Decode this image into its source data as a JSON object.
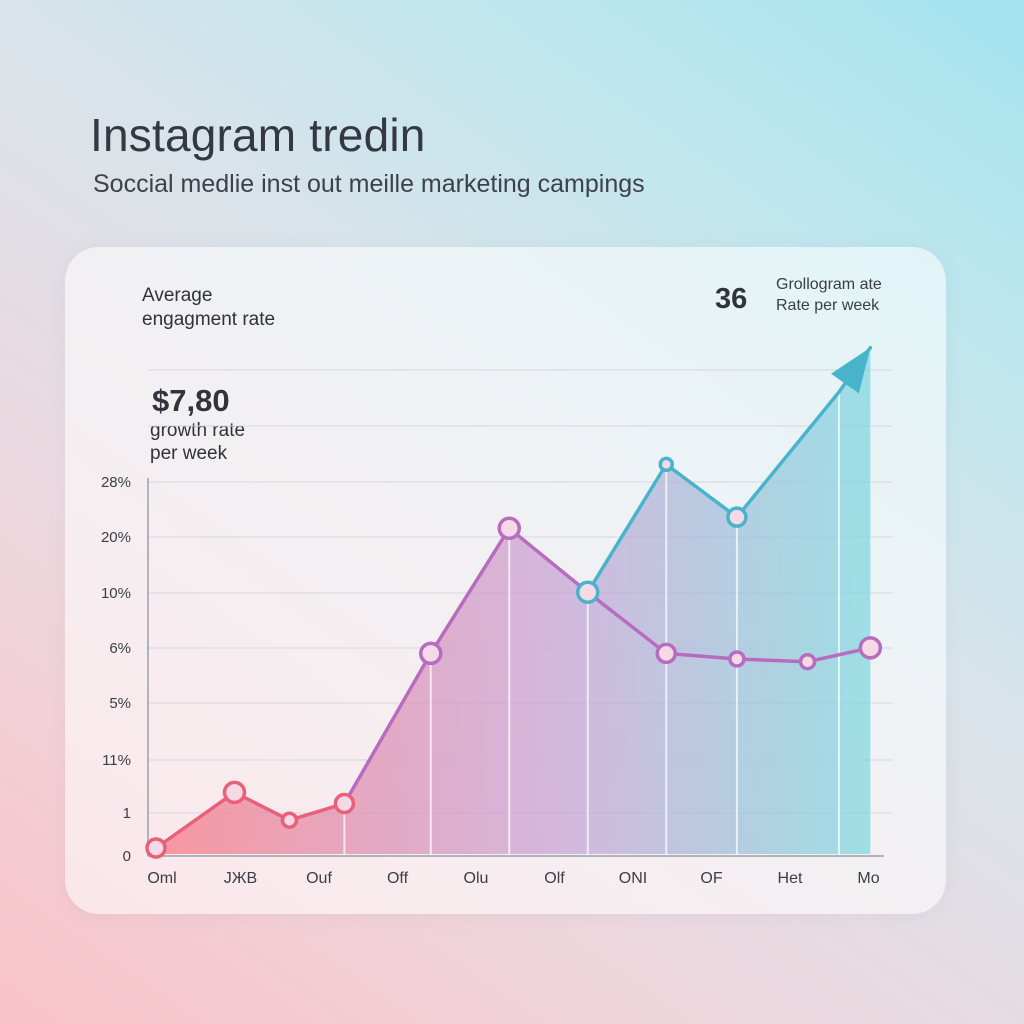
{
  "header": {
    "title": "Instagram tredin",
    "subtitle": "Soccial medlie inst out meille marketing campings"
  },
  "card": {
    "avg_label_line1": "Average",
    "avg_label_line2": "engagment rate",
    "growth_value": "$7,80",
    "growth_label_line1": "growth rate",
    "growth_label_line2": "per week",
    "stat_number": "36",
    "stat_label_line1": "Grollogram ate",
    "stat_label_line2": "Rate per week"
  },
  "colors": {
    "line_pink": "#e8607a",
    "line_purple": "#b76cc0",
    "line_teal": "#48b4cc",
    "fill_start": "#f7858f",
    "fill_mid": "#c9a0d4",
    "fill_end": "#82d8e0",
    "grid": "#d6d6e0",
    "axis": "#9aa0aa"
  },
  "chart_data": {
    "type": "area",
    "categories": [
      "Oml",
      "JЖB",
      "Ouf",
      "Off",
      "Olu",
      "Olf",
      "ONI",
      "OF",
      "Het",
      "Mo"
    ],
    "y_ticks": [
      "0",
      "1",
      "11%",
      "5%",
      "6%",
      "10%",
      "20%",
      "28%"
    ],
    "series": [
      {
        "color": "#e8607a",
        "points": [
          [
            0,
            0
          ],
          [
            1,
            1.0
          ],
          [
            1.7,
            0.5
          ],
          [
            2.4,
            0.8
          ]
        ]
      },
      {
        "color": "#b76cc0",
        "points": [
          [
            2.4,
            0.8
          ],
          [
            3.5,
            3.5
          ],
          [
            4.5,
            5.75
          ],
          [
            5.5,
            4.6
          ],
          [
            6.5,
            3.5
          ],
          [
            7.4,
            3.4
          ],
          [
            8.3,
            3.35
          ],
          [
            9.1,
            3.6
          ]
        ]
      },
      {
        "color": "#48b4cc",
        "points": [
          [
            5.5,
            4.6
          ],
          [
            6.5,
            6.9
          ],
          [
            7.4,
            5.95
          ],
          [
            8.7,
            8.2
          ],
          [
            9.1,
            9.0
          ]
        ]
      }
    ],
    "arrow_at_end": true,
    "grid": true
  }
}
